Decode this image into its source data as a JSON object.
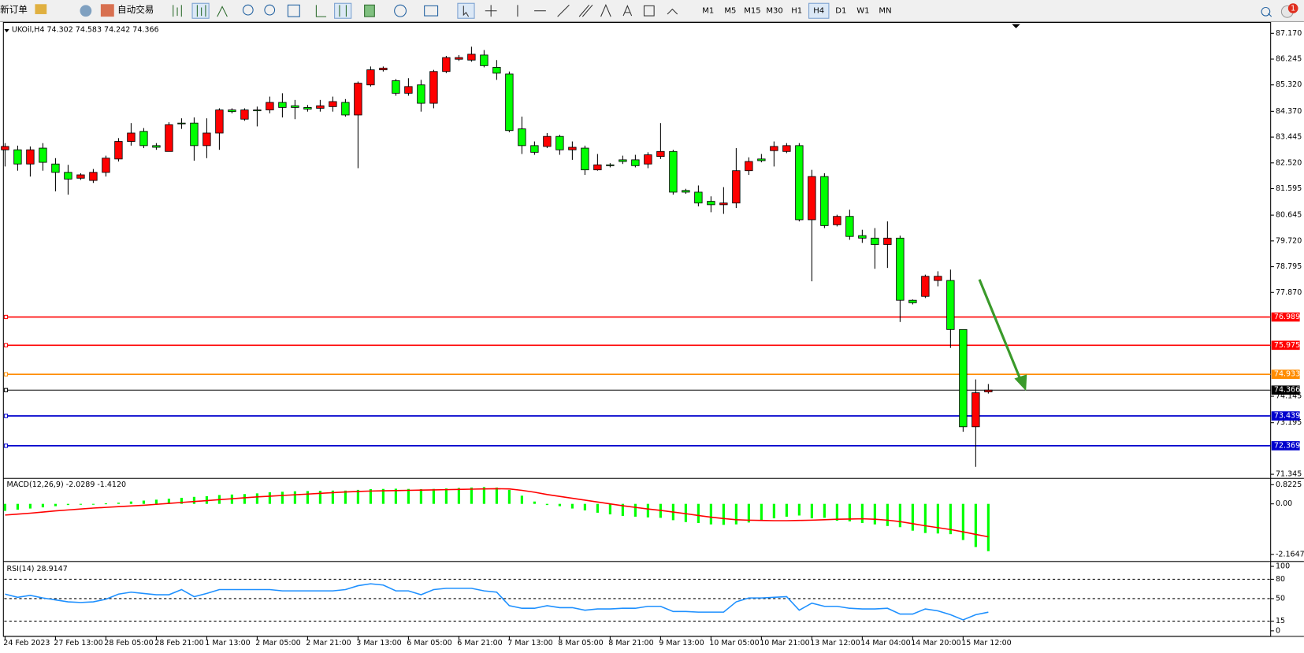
{
  "toolbar": {
    "new_order": "新订单",
    "auto_trading": "自动交易",
    "timeframes": [
      "M1",
      "M5",
      "M15",
      "M30",
      "H1",
      "H4",
      "D1",
      "W1",
      "MN"
    ],
    "active_timeframe": "H4",
    "notification_count": 1
  },
  "chart_data": [
    {
      "type": "candlestick",
      "title": "UKOil,H4  74.302 74.583 74.242 74.366",
      "up_color": "#ff0000",
      "down_color": "#00ff00",
      "categories": [
        "24 Feb 2023",
        null,
        null,
        null,
        "27 Feb 13:00",
        null,
        null,
        null,
        "28 Feb 05:00",
        null,
        null,
        null,
        "28 Feb 21:00",
        null,
        null,
        null,
        "1 Mar 13:00",
        null,
        null,
        null,
        "2 Mar 05:00",
        null,
        null,
        null,
        "2 Mar 21:00",
        null,
        null,
        null,
        "3 Mar 13:00",
        null,
        null,
        null,
        "6 Mar 05:00",
        null,
        null,
        null,
        "6 Mar 21:00",
        null,
        null,
        null,
        "7 Mar 13:00",
        null,
        null,
        null,
        "8 Mar 05:00",
        null,
        null,
        null,
        "8 Mar 21:00",
        null,
        null,
        null,
        "9 Mar 13:00",
        null,
        null,
        null,
        "10 Mar 05:00",
        null,
        null,
        null,
        "10 Mar 21:00",
        null,
        null,
        null,
        "13 Mar 12:00",
        null,
        null,
        null,
        "14 Mar 04:00",
        null,
        null,
        null,
        "14 Mar 20:00",
        null,
        null,
        null,
        "15 Mar 12:00",
        null,
        null
      ],
      "open": [
        82.99,
        82.99,
        82.48,
        83.05,
        82.48,
        82.18,
        81.97,
        81.89,
        82.18,
        82.66,
        83.29,
        83.65,
        83.14,
        82.93,
        83.95,
        83.95,
        83.14,
        83.59,
        84.42,
        84.09,
        84.42,
        84.42,
        84.69,
        84.57,
        84.51,
        84.48,
        84.54,
        84.69,
        84.24,
        85.32,
        85.86,
        85.47,
        85.02,
        85.32,
        84.66,
        85.8,
        86.24,
        86.21,
        86.39,
        85.95,
        85.71,
        83.74,
        83.14,
        83.11,
        83.47,
        82.99,
        83.05,
        82.27,
        82.45,
        82.63,
        82.63,
        82.48,
        82.75,
        82.93,
        81.53,
        81.47,
        81.14,
        81.02,
        81.08,
        82.24,
        82.66,
        82.96,
        82.93,
        83.14,
        80.48,
        82.03,
        80.3,
        80.6,
        79.91,
        79.82,
        79.59,
        79.82,
        77.59,
        77.73,
        78.3,
        78.3,
        76.54,
        73.05,
        74.302
      ],
      "high": [
        83.23,
        83.14,
        83.11,
        83.23,
        82.69,
        82.45,
        82.15,
        82.3,
        82.78,
        83.41,
        83.95,
        83.77,
        83.23,
        83.98,
        84.12,
        84.15,
        84.12,
        84.48,
        84.48,
        84.48,
        84.54,
        84.9,
        85.02,
        84.78,
        84.6,
        84.78,
        84.9,
        84.81,
        85.44,
        85.98,
        85.98,
        85.53,
        85.56,
        85.5,
        85.86,
        86.36,
        86.39,
        86.69,
        86.57,
        86.21,
        85.8,
        84.18,
        83.29,
        83.59,
        83.53,
        83.29,
        83.14,
        82.84,
        82.51,
        82.78,
        82.81,
        82.9,
        83.95,
        82.99,
        81.59,
        81.71,
        81.32,
        81.65,
        83.05,
        82.72,
        82.84,
        83.29,
        83.23,
        83.23,
        82.27,
        82.15,
        80.66,
        80.84,
        80.12,
        80.18,
        80.42,
        79.91,
        77.62,
        78.51,
        78.63,
        78.69,
        76.54,
        74.75,
        74.583
      ],
      "low": [
        82.39,
        82.24,
        82.03,
        82.24,
        81.5,
        81.38,
        81.91,
        81.8,
        82.03,
        82.57,
        83.14,
        83.05,
        82.99,
        82.93,
        83.74,
        82.6,
        82.69,
        82.99,
        84.3,
        84.03,
        83.83,
        84.3,
        84.15,
        84.09,
        84.36,
        84.36,
        84.36,
        84.18,
        82.33,
        85.26,
        85.8,
        84.93,
        84.93,
        84.36,
        84.48,
        85.74,
        86.18,
        86.15,
        85.95,
        85.5,
        83.62,
        82.84,
        82.81,
        83.05,
        82.81,
        82.63,
        82.09,
        82.24,
        82.36,
        82.48,
        82.36,
        82.33,
        82.66,
        81.38,
        81.41,
        80.96,
        80.75,
        80.69,
        80.9,
        82.09,
        82.54,
        82.39,
        82.87,
        80.42,
        78.27,
        80.18,
        80.24,
        79.76,
        79.65,
        78.72,
        78.75,
        76.81,
        77.44,
        77.67,
        78.09,
        75.88,
        72.87,
        71.61,
        74.242
      ],
      "close": [
        83.11,
        82.48,
        82.99,
        82.54,
        82.18,
        81.94,
        82.09,
        82.18,
        82.69,
        83.29,
        83.59,
        83.14,
        83.08,
        83.89,
        83.92,
        83.14,
        83.59,
        84.42,
        84.36,
        84.42,
        84.39,
        84.69,
        84.51,
        84.51,
        84.45,
        84.57,
        84.72,
        84.24,
        85.38,
        85.86,
        85.92,
        85.02,
        85.26,
        84.66,
        85.8,
        86.3,
        86.3,
        86.42,
        86.01,
        85.74,
        83.68,
        83.14,
        82.9,
        83.47,
        82.99,
        83.08,
        82.27,
        82.45,
        82.42,
        82.57,
        82.42,
        82.81,
        82.93,
        81.47,
        81.47,
        81.08,
        81.02,
        81.08,
        82.24,
        82.57,
        82.6,
        83.11,
        83.14,
        80.48,
        82.03,
        80.27,
        80.6,
        79.88,
        79.82,
        79.59,
        79.82,
        77.59,
        77.5,
        78.45,
        78.45,
        76.54,
        73.05,
        74.27,
        74.366
      ],
      "ylim": [
        71.23,
        87.53
      ],
      "yticks": [
        {
          "value": 87.17,
          "label": "87.170"
        },
        86.245,
        {
          "value": 85.32,
          "label": "85.320"
        },
        {
          "value": 84.37,
          "label": "84.370"
        },
        83.445,
        {
          "value": 82.52,
          "label": "82.520"
        },
        81.595,
        80.645,
        {
          "value": 79.72,
          "label": "79.720"
        },
        78.795,
        {
          "value": 77.87,
          "label": "77.870"
        },
        74.145,
        73.195,
        71.345
      ],
      "levels": [
        {
          "value": 76.989,
          "color": "#ff0000"
        },
        {
          "value": 75.975,
          "color": "#ff0000"
        },
        {
          "value": 74.933,
          "color": "#ff8c00"
        },
        {
          "value": 74.366,
          "color": "#000000"
        },
        {
          "value": 73.439,
          "color": "#0000cd"
        },
        {
          "value": 72.369,
          "color": "#0000cd"
        }
      ]
    },
    {
      "type": "macd",
      "title": "MACD(12,26,9) -2.0289 -1.4120",
      "color": "#00ff00",
      "signal_color": "#ff0000",
      "values": [
        -0.3,
        -0.25,
        -0.2,
        -0.15,
        -0.1,
        -0.05,
        -0.02,
        0.0,
        0.02,
        0.05,
        0.1,
        0.14,
        0.18,
        0.22,
        0.26,
        0.3,
        0.33,
        0.38,
        0.4,
        0.42,
        0.45,
        0.5,
        0.52,
        0.54,
        0.55,
        0.56,
        0.57,
        0.57,
        0.6,
        0.63,
        0.64,
        0.65,
        0.64,
        0.63,
        0.64,
        0.66,
        0.68,
        0.7,
        0.72,
        0.7,
        0.6,
        0.35,
        0.1,
        -0.05,
        -0.1,
        -0.2,
        -0.28,
        -0.38,
        -0.45,
        -0.52,
        -0.55,
        -0.58,
        -0.6,
        -0.7,
        -0.78,
        -0.82,
        -0.88,
        -0.9,
        -0.88,
        -0.8,
        -0.72,
        -0.62,
        -0.55,
        -0.5,
        -0.62,
        -0.6,
        -0.72,
        -0.75,
        -0.82,
        -0.88,
        -0.95,
        -1.0,
        -1.15,
        -1.25,
        -1.27,
        -1.3,
        -1.55,
        -1.85,
        -2.0289
      ],
      "signal": [
        -0.48,
        -0.44,
        -0.4,
        -0.35,
        -0.3,
        -0.26,
        -0.22,
        -0.18,
        -0.15,
        -0.12,
        -0.09,
        -0.06,
        -0.02,
        0.02,
        0.06,
        0.1,
        0.14,
        0.18,
        0.22,
        0.26,
        0.3,
        0.33,
        0.36,
        0.39,
        0.42,
        0.45,
        0.48,
        0.51,
        0.53,
        0.55,
        0.56,
        0.57,
        0.58,
        0.59,
        0.6,
        0.61,
        0.62,
        0.63,
        0.64,
        0.65,
        0.64,
        0.58,
        0.5,
        0.4,
        0.32,
        0.24,
        0.16,
        0.08,
        0.0,
        -0.08,
        -0.15,
        -0.22,
        -0.28,
        -0.35,
        -0.42,
        -0.5,
        -0.57,
        -0.63,
        -0.68,
        -0.7,
        -0.71,
        -0.72,
        -0.72,
        -0.71,
        -0.7,
        -0.68,
        -0.66,
        -0.65,
        -0.64,
        -0.66,
        -0.7,
        -0.76,
        -0.85,
        -0.94,
        -1.02,
        -1.1,
        -1.2,
        -1.31,
        -1.412
      ],
      "ylim": [
        -2.4,
        1.06
      ],
      "yticks": [
        0.8225,
        {
          "value": 0,
          "label": "0.00"
        },
        -2.1647
      ]
    },
    {
      "type": "line",
      "title": "RSI(14) 28.9147",
      "color": "#1e90ff",
      "values": [
        57,
        52,
        55,
        51,
        48,
        45,
        44,
        45,
        49,
        57,
        60,
        58,
        56,
        56,
        64,
        53,
        58,
        64,
        64,
        64,
        64,
        64,
        62,
        62,
        62,
        62,
        62,
        64,
        70,
        73,
        71,
        62,
        62,
        56,
        64,
        66,
        66,
        66,
        62,
        60,
        39,
        35,
        35,
        39,
        36,
        36,
        32,
        34,
        34,
        35,
        35,
        38,
        38,
        30,
        30,
        29,
        29,
        29,
        45,
        51,
        51,
        52,
        53,
        32,
        43,
        38,
        38,
        35,
        34,
        34,
        35,
        26,
        26,
        34,
        31,
        25,
        17,
        25,
        28.9147
      ],
      "ylim": [
        -6,
        105
      ],
      "yticks": [
        100,
        80,
        50,
        15,
        0
      ],
      "levels": [
        80,
        50,
        15
      ]
    }
  ]
}
